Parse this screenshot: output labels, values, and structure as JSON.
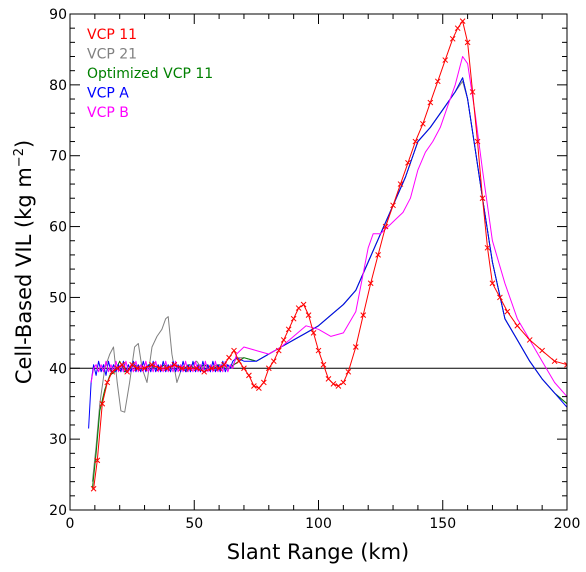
{
  "chart_data": {
    "type": "line",
    "xlabel": "Slant Range (km)",
    "ylabel": "Cell-Based VIL (kg m",
    "ylabel_sup": "−2",
    "ylabel_close": ")",
    "xlim": [
      0,
      200
    ],
    "ylim": [
      20,
      90
    ],
    "xticks": [
      0,
      50,
      100,
      150,
      200
    ],
    "yticks": [
      20,
      30,
      40,
      50,
      60,
      70,
      80,
      90
    ],
    "reference_line": {
      "y": 40,
      "color": "#000000"
    },
    "legend": [
      "VCP 11",
      "VCP 21",
      "Optimized VCP 11",
      "VCP A",
      "VCP B"
    ],
    "series": [
      {
        "name": "VCP 11",
        "color": "#ff0000",
        "marker": "x",
        "x": [
          9.5,
          11,
          13,
          15,
          17,
          19,
          21,
          23,
          25,
          27,
          30,
          33,
          36,
          39,
          42,
          45,
          48,
          51,
          54,
          57,
          60,
          62,
          64,
          66,
          68,
          70,
          72,
          74,
          76,
          78,
          80,
          82,
          84,
          86,
          88,
          90,
          92,
          94,
          96,
          98,
          100,
          102,
          104,
          106,
          108,
          110,
          112,
          115,
          118,
          121,
          124,
          127,
          130,
          133,
          136,
          139,
          142,
          145,
          148,
          151,
          154,
          156,
          158,
          160,
          162,
          164,
          166,
          168,
          170,
          173,
          176,
          180,
          185,
          190,
          195,
          200
        ],
        "y": [
          23,
          27,
          35,
          38,
          39.5,
          40,
          40.5,
          39.5,
          40.5,
          40,
          40,
          40.5,
          40,
          40,
          40.5,
          40,
          40,
          40,
          39.5,
          40,
          40,
          40.5,
          41.5,
          42.5,
          41,
          40,
          39,
          37.5,
          37.2,
          38,
          40,
          41,
          42.5,
          44,
          45.5,
          47,
          48.5,
          49,
          47.5,
          45,
          42.5,
          40.5,
          38.5,
          37.8,
          37.5,
          38,
          39.5,
          43,
          47.5,
          52,
          56,
          60,
          63,
          66,
          69,
          72,
          74.5,
          77.5,
          80.5,
          83.5,
          86.5,
          88,
          89,
          86,
          79,
          72,
          64,
          57,
          52,
          50,
          48,
          46,
          44,
          42.5,
          41,
          40.5
        ]
      },
      {
        "name": "VCP 21",
        "color": "#808080",
        "x": [
          9,
          10.5,
          12,
          14,
          16,
          17.5,
          19,
          20.5,
          22,
          24,
          26,
          27.5,
          29,
          31,
          33,
          35,
          37,
          38.5,
          39.5,
          41,
          43,
          45,
          47,
          49,
          51,
          53,
          55,
          57,
          59,
          61,
          63,
          65,
          67,
          70,
          75,
          80,
          85,
          90,
          95,
          100,
          105,
          110,
          115,
          120,
          125,
          130,
          135,
          140,
          145,
          150,
          155,
          158,
          160,
          163,
          166,
          170,
          175,
          180,
          185,
          190,
          195,
          200
        ],
        "y": [
          24,
          29,
          35,
          40,
          42,
          43,
          38,
          34,
          33.8,
          38,
          43,
          43.5,
          40,
          38,
          43,
          44.5,
          45.5,
          47,
          47.3,
          42,
          38,
          40,
          39.5,
          40.5,
          41,
          40,
          40.5,
          40,
          40.5,
          40,
          40.5,
          40,
          41.5,
          41.5,
          41,
          42,
          43,
          44,
          45,
          46,
          47.5,
          49,
          51,
          55,
          59,
          63,
          67,
          72,
          74,
          76.5,
          79,
          80.5,
          78,
          71,
          64,
          55,
          47,
          44,
          41,
          38.5,
          36.5,
          35
        ]
      },
      {
        "name": "Optimized VCP 11",
        "color": "#008000",
        "x": [
          9,
          10.5,
          12,
          14,
          16,
          18,
          20,
          22,
          24,
          26,
          28,
          30,
          32,
          34,
          36,
          38,
          40,
          42,
          44,
          46,
          48,
          50,
          52,
          54,
          56,
          58,
          60,
          62,
          64,
          66,
          68,
          70,
          75,
          80,
          85,
          90,
          95,
          100,
          105,
          110,
          115,
          120,
          125,
          130,
          135,
          140,
          145,
          150,
          155,
          158,
          160,
          163,
          166,
          170,
          175,
          180,
          185,
          190,
          195,
          200
        ],
        "y": [
          23,
          28,
          34,
          37,
          39,
          39.5,
          41,
          39.5,
          40,
          40.5,
          40,
          40,
          40.5,
          40,
          40,
          40.5,
          40,
          40.5,
          40,
          40,
          40.5,
          40,
          40,
          40.5,
          40,
          40,
          40.5,
          40,
          40,
          40.5,
          41,
          41.5,
          41,
          42,
          43,
          44,
          45,
          46,
          47.5,
          49,
          51,
          55,
          59,
          63,
          67,
          72,
          74,
          76.5,
          79,
          81,
          78,
          71,
          64,
          55,
          47,
          44,
          41,
          38.5,
          36.5,
          35
        ]
      },
      {
        "name": "VCP A",
        "color": "#0000ff",
        "x": [
          7.5,
          8.5,
          9.5,
          10.5,
          11.5,
          12.5,
          13.5,
          14.5,
          15.5,
          16.5,
          17.5,
          18.5,
          19.5,
          20.5,
          21.5,
          22.5,
          23.5,
          24.5,
          25.5,
          26.5,
          27.5,
          28.5,
          29.5,
          30.5,
          31.5,
          32.5,
          33.5,
          34.5,
          35.5,
          36.5,
          37.5,
          38.5,
          39.5,
          40.5,
          41.5,
          42.5,
          43.5,
          44.5,
          45.5,
          46.5,
          47.5,
          48.5,
          49.5,
          50.5,
          51.5,
          52.5,
          53.5,
          54.5,
          55.5,
          56.5,
          57.5,
          58.5,
          59.5,
          60.5,
          61.5,
          62.5,
          63.5,
          64.5,
          65.5,
          67,
          70,
          75,
          80,
          85,
          90,
          95,
          100,
          105,
          110,
          115,
          120,
          125,
          130,
          135,
          140,
          145,
          150,
          155,
          158,
          160,
          163,
          166,
          170,
          175,
          180,
          185,
          190,
          195,
          200
        ],
        "y": [
          31.5,
          38,
          40.5,
          39,
          41,
          39.5,
          40.5,
          39,
          41,
          39.5,
          40.5,
          39.5,
          40.5,
          39.5,
          41,
          39.5,
          40.5,
          39.5,
          41,
          39.5,
          40.5,
          39.5,
          41,
          39.5,
          40.5,
          39.5,
          41,
          39.5,
          40.5,
          39.5,
          41,
          39.5,
          40.5,
          39.5,
          41,
          39.5,
          40.5,
          39.5,
          41,
          39.5,
          40.5,
          39.5,
          41,
          39.5,
          40.5,
          39.5,
          41,
          39.5,
          40.5,
          39.5,
          41,
          39.5,
          40.5,
          39.5,
          41,
          39.5,
          40.5,
          40,
          41,
          41.5,
          41,
          41,
          42,
          43,
          44,
          45,
          46,
          47.5,
          49,
          51,
          55,
          59,
          63,
          67,
          72,
          74,
          76.5,
          79,
          81,
          78,
          71,
          64,
          55,
          47,
          44,
          41,
          38.5,
          36.5,
          34.5
        ]
      },
      {
        "name": "VCP B",
        "color": "#ff00ff",
        "x": [
          8.5,
          9.5,
          10.5,
          11.5,
          12.5,
          13.5,
          14.5,
          15.5,
          16.5,
          17.5,
          18.5,
          19.5,
          20.5,
          21.5,
          22.5,
          23.5,
          24.5,
          25.5,
          26.5,
          27.5,
          28.5,
          29.5,
          30.5,
          31.5,
          32.5,
          33.5,
          34.5,
          35.5,
          36.5,
          37.5,
          38.5,
          39.5,
          40.5,
          41.5,
          42.5,
          43.5,
          44.5,
          45.5,
          46.5,
          47.5,
          48.5,
          49.5,
          50.5,
          51.5,
          52.5,
          53.5,
          54.5,
          55.5,
          56.5,
          57.5,
          58.5,
          59.5,
          60.5,
          61.5,
          62.5,
          63.5,
          64.5,
          65.5,
          67,
          70,
          75,
          80,
          85,
          90,
          95,
          100,
          105,
          110,
          115,
          120,
          122,
          125,
          128,
          131,
          134,
          137,
          140,
          143,
          146,
          149,
          152,
          155,
          158,
          160,
          163,
          166,
          170,
          175,
          180,
          185,
          190,
          195,
          200
        ],
        "y": [
          38,
          40,
          40.5,
          39.5,
          40.5,
          39.5,
          41,
          39.5,
          40.5,
          39.5,
          41,
          39.5,
          40.5,
          39.5,
          41,
          39.5,
          40.5,
          39.5,
          41,
          39.5,
          40.5,
          39.5,
          41,
          39.5,
          40.5,
          39.5,
          41,
          39.5,
          40.5,
          39.5,
          41,
          39.5,
          40.5,
          39.5,
          41,
          39.5,
          40.5,
          39.5,
          41,
          39.5,
          40.5,
          39.5,
          41,
          39.5,
          40.5,
          39.5,
          41,
          39.5,
          40.5,
          39.5,
          41,
          39.5,
          40.5,
          39.5,
          41,
          39.5,
          40.5,
          40,
          42,
          43,
          42.5,
          42,
          43,
          44.5,
          46,
          45.5,
          44.5,
          45,
          48,
          57,
          59,
          59,
          60,
          61,
          62,
          64,
          68,
          70.5,
          72,
          74,
          77,
          80,
          84,
          83,
          76,
          68,
          58,
          52,
          47,
          44,
          41,
          38,
          36
        ]
      }
    ]
  }
}
